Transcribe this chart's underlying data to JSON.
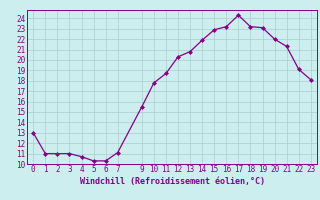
{
  "x": [
    0,
    1,
    2,
    3,
    4,
    5,
    6,
    7,
    9,
    10,
    11,
    12,
    13,
    14,
    15,
    16,
    17,
    18,
    19,
    20,
    21,
    22,
    23
  ],
  "y": [
    13,
    11,
    11,
    11,
    10.7,
    10.3,
    10.3,
    11.1,
    15.5,
    17.8,
    18.7,
    20.3,
    20.8,
    21.9,
    22.9,
    23.2,
    24.3,
    23.2,
    23.1,
    22.0,
    21.3,
    19.1,
    18.1
  ],
  "xlim": [
    -0.5,
    23.5
  ],
  "ylim": [
    10,
    24.8
  ],
  "yticks": [
    10,
    11,
    12,
    13,
    14,
    15,
    16,
    17,
    18,
    19,
    20,
    21,
    22,
    23,
    24
  ],
  "xticks": [
    0,
    1,
    2,
    3,
    4,
    5,
    6,
    7,
    9,
    10,
    11,
    12,
    13,
    14,
    15,
    16,
    17,
    18,
    19,
    20,
    21,
    22,
    23
  ],
  "xlabel": "Windchill (Refroidissement éolien,°C)",
  "line_color": "#880088",
  "marker": "D",
  "marker_size": 2.0,
  "bg_color": "#cceeee",
  "grid_color": "#aacccc",
  "tick_fontsize": 5.5,
  "xlabel_fontsize": 6.0
}
